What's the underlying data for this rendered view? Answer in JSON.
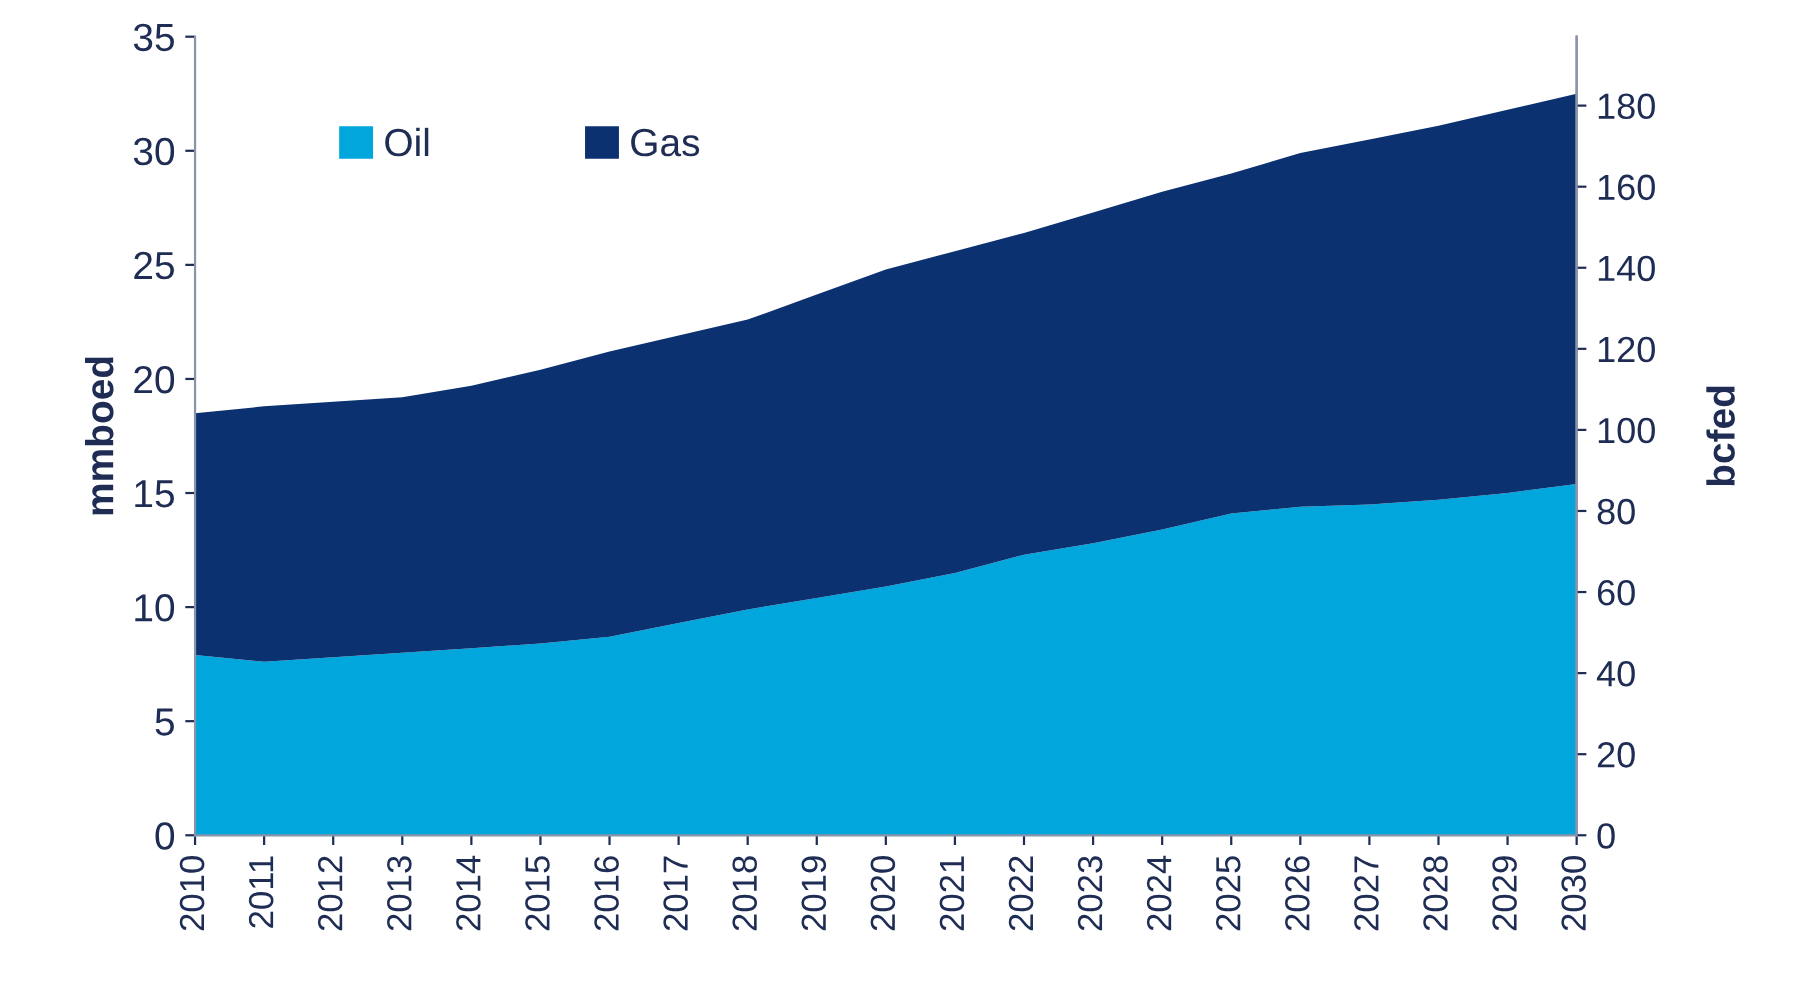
{
  "chart_data": {
    "type": "area",
    "stacked": true,
    "ylabel": "mmboed",
    "y2label": "bcfed",
    "x": [
      2010,
      2011,
      2012,
      2013,
      2014,
      2015,
      2016,
      2017,
      2018,
      2019,
      2020,
      2021,
      2022,
      2023,
      2024,
      2025,
      2026,
      2027,
      2028,
      2029,
      2030
    ],
    "series": [
      {
        "name": "Oil",
        "color": "#00a6dc",
        "values": [
          7.9,
          7.6,
          7.8,
          8.0,
          8.2,
          8.4,
          8.7,
          9.3,
          9.9,
          10.4,
          10.9,
          11.5,
          12.3,
          12.8,
          13.4,
          14.1,
          14.4,
          14.5,
          14.7,
          15.0,
          15.4
        ]
      },
      {
        "name": "Gas",
        "color": "#0b3170",
        "values": [
          10.6,
          11.2,
          11.2,
          11.2,
          11.5,
          12.0,
          12.5,
          12.6,
          12.7,
          13.3,
          13.9,
          14.1,
          14.1,
          14.5,
          14.8,
          14.9,
          15.5,
          16.0,
          16.4,
          16.8,
          17.1
        ]
      }
    ],
    "xlim": [
      2010,
      2030
    ],
    "xticks": [
      2010,
      2011,
      2012,
      2013,
      2014,
      2015,
      2016,
      2017,
      2018,
      2019,
      2020,
      2021,
      2022,
      2023,
      2024,
      2025,
      2026,
      2027,
      2028,
      2029,
      2030
    ],
    "ylim": [
      0,
      35
    ],
    "yticks": [
      0,
      5,
      10,
      15,
      20,
      25,
      30,
      35
    ],
    "y2lim": [
      0,
      197
    ],
    "y2ticks": [
      0,
      20,
      40,
      60,
      80,
      100,
      120,
      140,
      160,
      180
    ],
    "legend": "top left",
    "grid": false
  }
}
